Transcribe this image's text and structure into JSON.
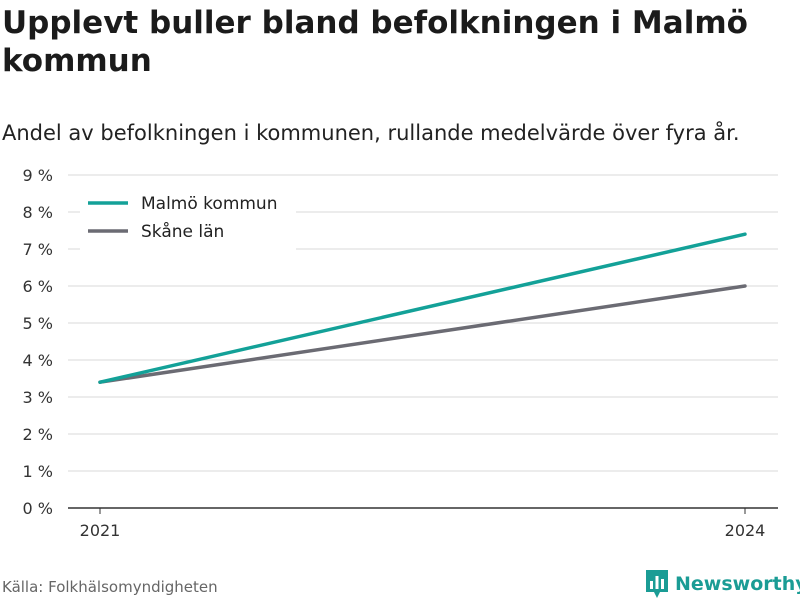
{
  "header": {
    "title": "Upplevt buller bland befolkningen i Malmö kommun",
    "subtitle": "Andel av befolkningen i kommunen, rullande medelvärde över fyra år."
  },
  "footer": {
    "source": "Källa: Folkhälsomyndigheten",
    "brand": "Newsworthy"
  },
  "colors": {
    "malmo": "#13a198",
    "skane": "#6b6b73",
    "grid": "#d9d9d9",
    "axis": "#333333"
  },
  "chart_data": {
    "type": "line",
    "title": "Upplevt buller bland befolkningen i Malmö kommun",
    "subtitle": "Andel av befolkningen i kommunen, rullande medelvärde över fyra år.",
    "x": [
      "2021",
      "2024"
    ],
    "x_ticks": [
      "2021",
      "2024"
    ],
    "y_ticks": [
      "0 %",
      "1 %",
      "2 %",
      "3 %",
      "4 %",
      "5 %",
      "6 %",
      "7 %",
      "8 %",
      "9 %"
    ],
    "ylim": [
      0,
      9
    ],
    "y_unit": "%",
    "grid": true,
    "legend_position": "top-left",
    "series": [
      {
        "name": "Malmö kommun",
        "values": [
          3.4,
          7.4
        ],
        "color": "#13a198"
      },
      {
        "name": "Skåne län",
        "values": [
          3.4,
          6.0
        ],
        "color": "#6b6b73"
      }
    ]
  }
}
